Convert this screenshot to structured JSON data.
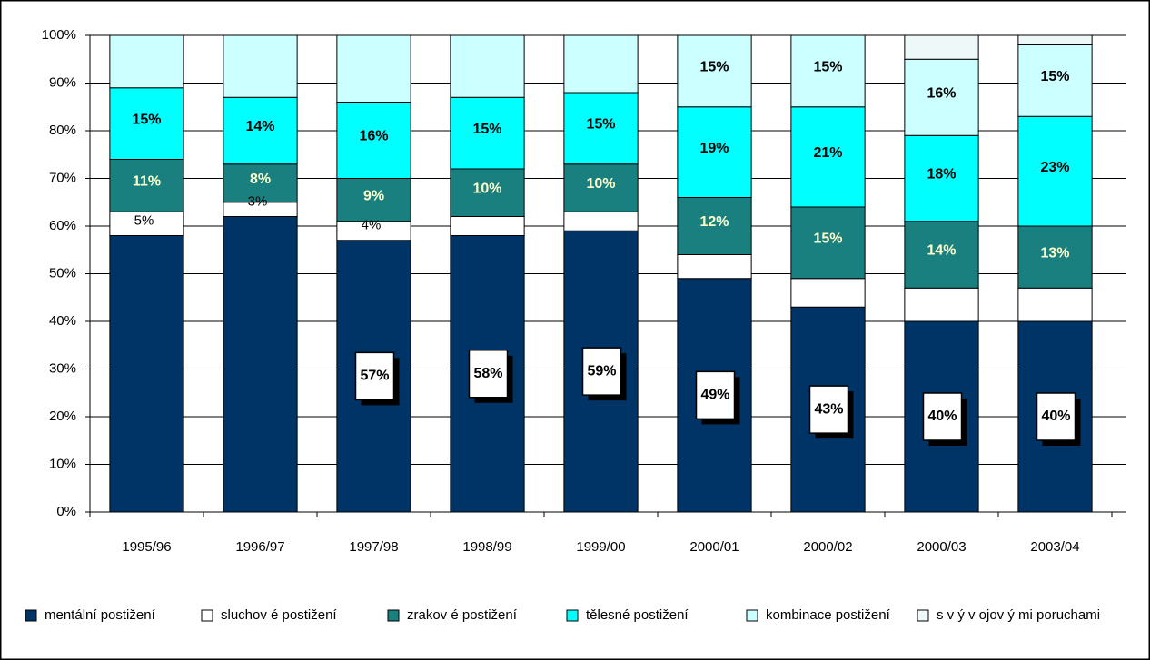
{
  "chart_data": {
    "type": "stacked_bar",
    "categories": [
      "1995/96",
      "1996/97",
      "1997/98",
      "1998/99",
      "1999/00",
      "2000/01",
      "2000/02",
      "2000/03",
      "2003/04"
    ],
    "series": [
      {
        "name": "mentální postižení",
        "color": "#003366",
        "values": [
          58,
          62,
          57,
          58,
          59,
          49,
          43,
          40,
          40
        ],
        "value_labels": [
          null,
          null,
          "57%",
          "58%",
          "59%",
          "49%",
          "43%",
          "40%",
          "40%"
        ]
      },
      {
        "name": "sluchov é postižení",
        "color": "#ffffff",
        "values": [
          5,
          3,
          4,
          4,
          4,
          5,
          6,
          7,
          7
        ],
        "value_labels": [
          "5%",
          "3%",
          "4%",
          null,
          null,
          null,
          null,
          null,
          null
        ]
      },
      {
        "name": "zrakov é postižení",
        "color": "#1a7f7f",
        "values": [
          11,
          8,
          9,
          10,
          10,
          12,
          15,
          14,
          13
        ],
        "value_labels": [
          "11%",
          "8%",
          "9%",
          "10%",
          "10%",
          "12%",
          "15%",
          "14%",
          "13%"
        ]
      },
      {
        "name": "tělesné postižení",
        "color": "#00ffff",
        "values": [
          15,
          14,
          16,
          15,
          15,
          19,
          21,
          18,
          23
        ],
        "value_labels": [
          "15%",
          "14%",
          "16%",
          "15%",
          "15%",
          "19%",
          "21%",
          "18%",
          "23%"
        ]
      },
      {
        "name": "kombinace postižení",
        "color": "#ccffff",
        "values": [
          11,
          13,
          14,
          13,
          12,
          15,
          15,
          16,
          15
        ],
        "value_labels": [
          null,
          null,
          null,
          null,
          null,
          "15%",
          "15%",
          "16%",
          "15%"
        ]
      },
      {
        "name": "s v ý v ojov ý mi poruchami",
        "color": "#eef8f8",
        "values": [
          0,
          0,
          0,
          0,
          0,
          0,
          0,
          5,
          2
        ],
        "value_labels": [
          null,
          null,
          null,
          null,
          null,
          null,
          null,
          null,
          null
        ]
      }
    ],
    "ylim": [
      0,
      100
    ],
    "yticks": [
      {
        "value": 0,
        "label": "0%"
      },
      {
        "value": 10,
        "label": "10%"
      },
      {
        "value": 20,
        "label": "20%"
      },
      {
        "value": 30,
        "label": "30%"
      },
      {
        "value": 40,
        "label": "40%"
      },
      {
        "value": 50,
        "label": "50%"
      },
      {
        "value": 60,
        "label": "60%"
      },
      {
        "value": 70,
        "label": "70%"
      },
      {
        "value": 80,
        "label": "80%"
      },
      {
        "value": 90,
        "label": "90%"
      },
      {
        "value": 100,
        "label": "100%"
      }
    ],
    "grid": true,
    "legend": "bottom"
  }
}
